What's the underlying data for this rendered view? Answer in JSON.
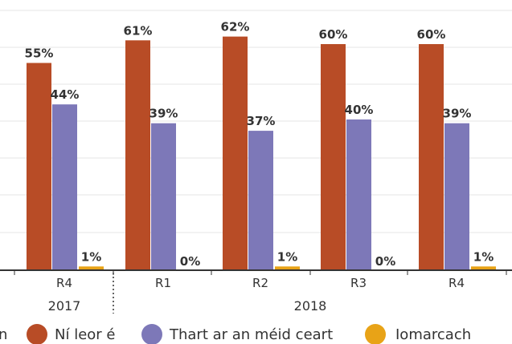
{
  "colors": {
    "gridline": "#e6e6e6",
    "baseline": "#333333",
    "text": "#333333"
  },
  "chart_data": {
    "type": "bar",
    "ylim": [
      0,
      70
    ],
    "grid": true,
    "categories": [
      "R4",
      "R1",
      "R2",
      "R3",
      "R4"
    ],
    "groups": [
      {
        "label": "2017",
        "start": 0,
        "end": 0
      },
      {
        "label": "2018",
        "start": 1,
        "end": 4
      }
    ],
    "series": [
      {
        "name": "Ní leor é",
        "color": "#b84c26",
        "values": [
          55,
          61,
          62,
          60,
          60
        ],
        "labels": [
          "55%",
          "61%",
          "62%",
          "60%",
          "60%"
        ]
      },
      {
        "name": "Thart ar an méid ceart",
        "color": "#7d78b8",
        "values": [
          44,
          39,
          37,
          40,
          39
        ],
        "labels": [
          "44%",
          "39%",
          "37%",
          "40%",
          "39%"
        ]
      },
      {
        "name": "Iomarcach",
        "color": "#e8a317",
        "values": [
          1,
          0,
          1,
          0,
          1
        ],
        "labels": [
          "1%",
          "0%",
          "1%",
          "0%",
          "1%"
        ]
      }
    ],
    "legend": {
      "position": "bottom",
      "partial_first_label": "n",
      "items": [
        "Ní leor é",
        "Thart ar an méid ceart",
        "Iomarcach"
      ]
    }
  }
}
